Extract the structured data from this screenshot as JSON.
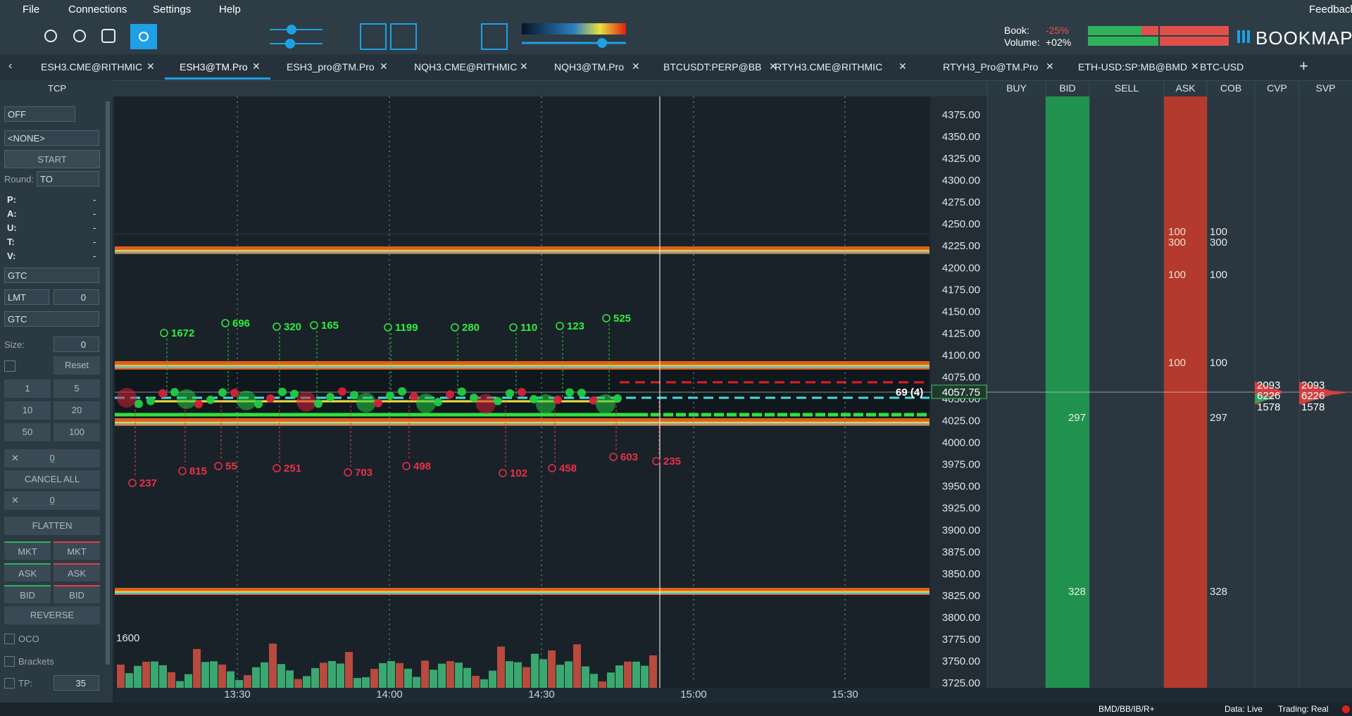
{
  "menu": [
    "File",
    "Connections",
    "Settings",
    "Help"
  ],
  "feedback": "Feedback",
  "book": {
    "book_label": "Book:",
    "book_value": "-25%",
    "volume_label": "Volume:",
    "volume_value": "+02%"
  },
  "brand": "BOOKMAP",
  "tabs": [
    "ESH3.CME@RITHMIC",
    "ESH3@TM.Pro",
    "ESH3_pro@TM.Pro",
    "NQH3.CME@RITHMIC",
    "NQH3@TM.Pro",
    "BTCUSDT:PERP@BB",
    "RTYH3.CME@RITHMIC",
    "RTYH3_Pro@TM.Pro",
    "ETH-USD:SP:MB@BMD",
    "BTC-USD"
  ],
  "panel": {
    "title": "TCP",
    "mode": "OFF",
    "strategy": "<NONE>",
    "start": "START",
    "round_label": "Round:",
    "round_value": "TO",
    "stats": [
      {
        "label": "P:",
        "value": "-"
      },
      {
        "label": "A:",
        "value": "-"
      },
      {
        "label": "U:",
        "value": "-"
      },
      {
        "label": "T:",
        "value": "-"
      },
      {
        "label": "V:",
        "value": "-"
      }
    ],
    "tif1": "GTC",
    "order_type": "LMT",
    "offset": "0",
    "tif2": "GTC",
    "size_label": "Size:",
    "size": "0",
    "reset": "Reset",
    "sizes": [
      "1",
      "5",
      "10",
      "20",
      "50",
      "100"
    ],
    "cancel_count": "0",
    "cancel_all": "CANCEL ALL",
    "flatten_count": "0",
    "flatten": "FLATTEN",
    "buttons": [
      [
        "MKT",
        "MKT"
      ],
      [
        "ASK",
        "ASK"
      ],
      [
        "BID",
        "BID"
      ]
    ],
    "reverse": "REVERSE",
    "oco": "OCO",
    "brackets": "Brackets",
    "tp_label": "TP:",
    "tp": "35"
  },
  "columns": [
    "BUY",
    "BID",
    "SELL",
    "ASK",
    "COB",
    "CVP",
    "SVP"
  ],
  "price_axis": [
    "4375.00",
    "4350.00",
    "4325.00",
    "4300.00",
    "4275.00",
    "4250.00",
    "4225.00",
    "4200.00",
    "4175.00",
    "4150.00",
    "4125.00",
    "4100.00",
    "4075.00",
    "4050.00",
    "4025.00",
    "4000.00",
    "3975.00",
    "3950.00",
    "3925.00",
    "3900.00",
    "3875.00",
    "3850.00",
    "3825.00",
    "3800.00",
    "3775.00",
    "3750.00",
    "3725.00"
  ],
  "last_price": "4057.75",
  "last_trade": "69 (4)",
  "time_axis": [
    "13:30",
    "14:00",
    "14:30",
    "15:00",
    "15:30"
  ],
  "volume_max": "1600",
  "trades_buy": [
    "1672",
    "696",
    "320",
    "165",
    "1199",
    "280",
    "110",
    "123",
    "525"
  ],
  "trades_sell": [
    "237",
    "815",
    "55",
    "251",
    "703",
    "498",
    "102",
    "458",
    "603",
    "235"
  ],
  "dom": {
    "ask": [
      "100",
      "300",
      "100",
      "100"
    ],
    "cob_ask": [
      "100",
      "300",
      "100",
      "100"
    ],
    "bid": [
      "297",
      "328"
    ],
    "cob_bid": [
      "297",
      "328"
    ],
    "cvp": [
      "2093",
      "6226",
      "1578"
    ],
    "svp": [
      "2093",
      "6226",
      "1578"
    ]
  },
  "status": {
    "feeds": "BMD/BB/IB/R+",
    "data": "Data: Live",
    "trading": "Trading: Real"
  }
}
